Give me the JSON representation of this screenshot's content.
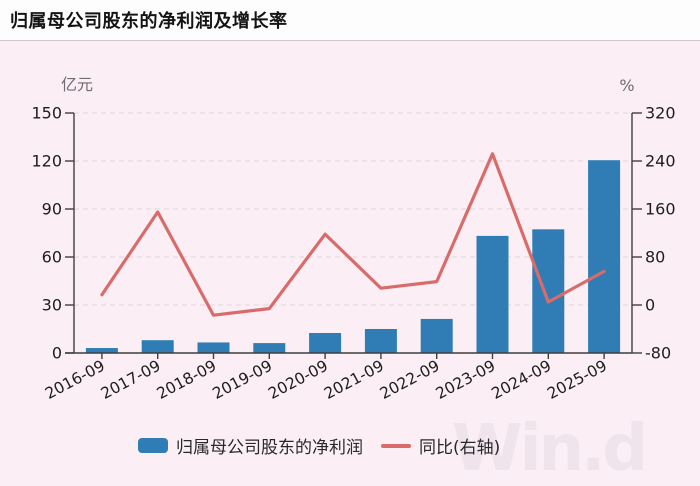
{
  "header": {
    "title": "归属母公司股东的净利润及增长率"
  },
  "legend": {
    "bar_label": "归属母公司股东的净利润",
    "line_label": "同比(右轴)"
  },
  "watermark": "Win.d",
  "colors": {
    "background": "#fbeff5",
    "header_background": "#fefdfe",
    "bar": "#2f7db4",
    "line": "#d96b6b",
    "axis": "#3f3f3f",
    "grid": "#ddd4d9",
    "tick_text": "#1d1d1d",
    "unit_text": "#6f6b72",
    "watermark": "#efe4ec"
  },
  "chart_data": {
    "type": "bar",
    "subtype": "bar+line combo, dual axis",
    "title": "归属母公司股东的净利润及增长率",
    "categories": [
      "2016-09",
      "2017-09",
      "2018-09",
      "2019-09",
      "2020-09",
      "2021-09",
      "2022-09",
      "2023-09",
      "2024-09",
      "2025-09"
    ],
    "series": [
      {
        "name": "归属母公司股东的净利润",
        "type": "bar",
        "axis": "left",
        "values": [
          3.1,
          8.0,
          6.6,
          6.2,
          12.5,
          15.0,
          21.3,
          73.2,
          77.3,
          120.5
        ]
      },
      {
        "name": "同比(右轴)",
        "type": "line",
        "axis": "right",
        "values": [
          17,
          155,
          -17,
          -6,
          118,
          28,
          39,
          252,
          5,
          56
        ]
      }
    ],
    "left_axis": {
      "unit": "亿元",
      "min": 0,
      "max": 150,
      "ticks": [
        0,
        30,
        60,
        90,
        120,
        150
      ]
    },
    "right_axis": {
      "unit": "%",
      "min": -80,
      "max": 320,
      "ticks": [
        -80,
        0,
        80,
        160,
        240,
        320
      ]
    },
    "grid": {
      "horizontal": true,
      "style": "dashed"
    },
    "legend_position": "bottom",
    "x_label_rotation": -28
  }
}
